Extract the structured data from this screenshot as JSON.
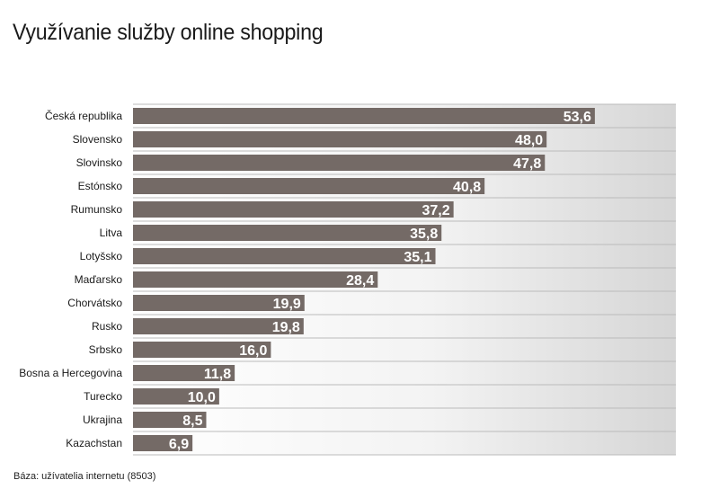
{
  "chart_data": {
    "type": "bar",
    "orientation": "horizontal",
    "title": "Využívanie služby online shopping",
    "categories": [
      "Česká republika",
      "Slovensko",
      "Slovinsko",
      "Estónsko",
      "Rumunsko",
      "Litva",
      "Lotyšsko",
      "Maďarsko",
      "Chorvátsko",
      "Rusko",
      "Srbsko",
      "Bosna a Hercegovina",
      "Turecko",
      "Ukrajina",
      "Kazachstan"
    ],
    "values": [
      53.6,
      48.0,
      47.8,
      40.8,
      37.2,
      35.8,
      35.1,
      28.4,
      19.9,
      19.8,
      16.0,
      11.8,
      10.0,
      8.5,
      6.9
    ],
    "data_labels": [
      "53,6",
      "48,0",
      "47,8",
      "40,8",
      "37,2",
      "35,8",
      "35,1",
      "28,4",
      "19,9",
      "19,8",
      "16,0",
      "11,8",
      "10,0",
      "8,5",
      "6,9"
    ],
    "xlim": [
      0,
      63
    ],
    "grid": false,
    "colors": {
      "bar": "#746a66",
      "label": "#ffffff",
      "row_line": "#bbbbbb"
    }
  },
  "footer": {
    "source": "Báza: užívatelia internetu (8503)"
  }
}
